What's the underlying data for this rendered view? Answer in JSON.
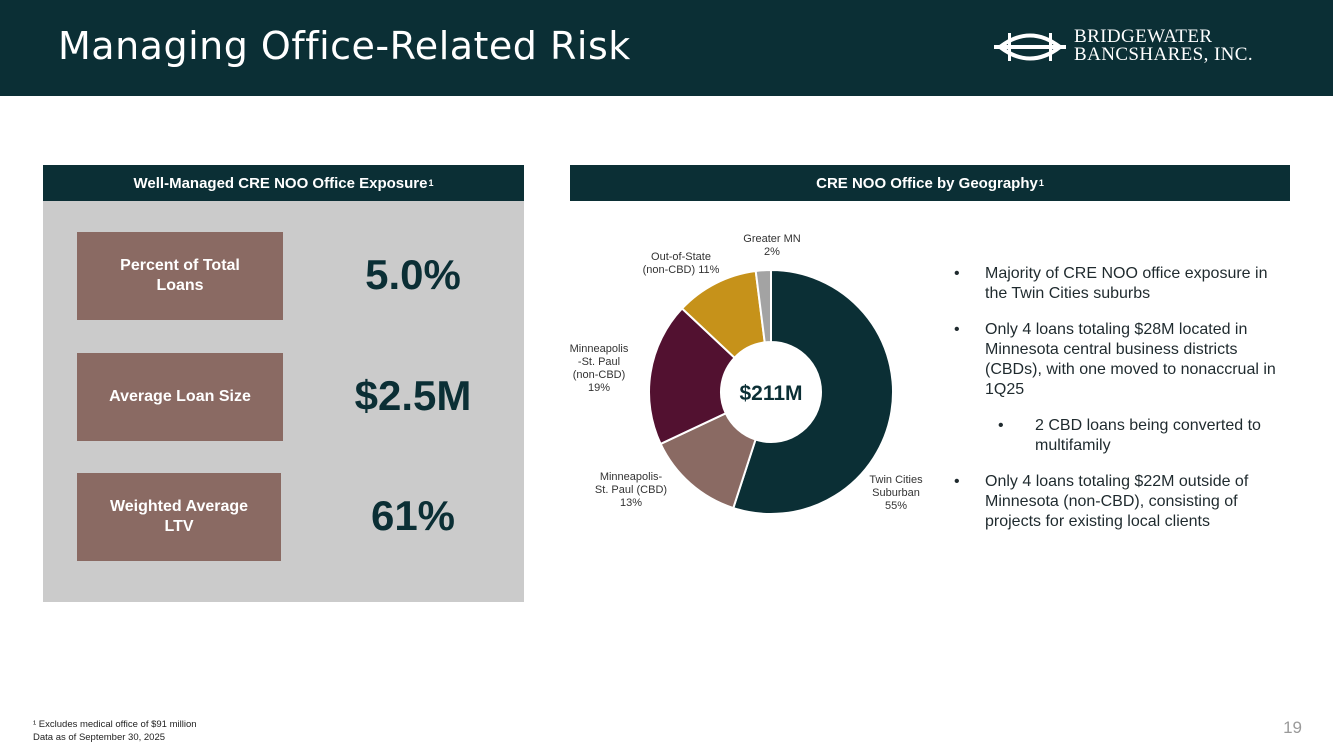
{
  "header": {
    "title": "Managing Office-Related Risk",
    "logo_line1": "BRIDGEWATER",
    "logo_line2": "BANCSHARES, INC."
  },
  "left_panel": {
    "heading": "Well-Managed CRE NOO Office Exposure",
    "heading_sup": "1",
    "metrics": [
      {
        "label": "Percent of Total Loans",
        "value": "5.0%"
      },
      {
        "label": "Average Loan Size",
        "value": "$2.5M"
      },
      {
        "label": "Weighted Average LTV",
        "value": "61%"
      }
    ]
  },
  "right_panel": {
    "heading": "CRE NOO Office by Geography",
    "heading_sup": "1"
  },
  "chart_data": {
    "type": "pie",
    "variant": "donut",
    "center_label": "$211M",
    "categories": [
      "Twin Cities Suburban",
      "Minneapolis-St. Paul (CBD)",
      "Minneapolis-St. Paul (non-CBD)",
      "Out-of-State (non-CBD)",
      "Greater MN"
    ],
    "values": [
      55,
      13,
      19,
      11,
      2
    ],
    "unit": "%",
    "colors": [
      "#0b2f35",
      "#8a6a63",
      "#521130",
      "#c6921a",
      "#a3a3a3"
    ],
    "labels": [
      [
        "Twin Cities",
        "Suburban",
        "55%"
      ],
      [
        "Minneapolis-",
        "St. Paul (CBD)",
        "13%"
      ],
      [
        "Minneapolis",
        "-St. Paul",
        "(non-CBD)",
        "19%"
      ],
      [
        "Out-of-State",
        "(non-CBD) 11%"
      ],
      [
        "Greater MN",
        "2%"
      ]
    ]
  },
  "bullets": [
    {
      "text": "Majority of CRE NOO office exposure in the Twin Cities suburbs",
      "level": 1
    },
    {
      "text": "Only 4 loans totaling $28M located in Minnesota central business districts (CBDs), with one moved to nonaccrual in 1Q25",
      "level": 1
    },
    {
      "text": "2 CBD loans being converted to multifamily",
      "level": 2
    },
    {
      "text": "Only 4 loans totaling $22M outside of Minnesota (non-CBD), consisting of projects for existing local clients",
      "level": 1
    }
  ],
  "bullet_glyph": "•",
  "footnote": {
    "line1": "¹ Excludes medical office of $91 million",
    "line2": "Data as of September 30, 2025"
  },
  "page_number": "19"
}
